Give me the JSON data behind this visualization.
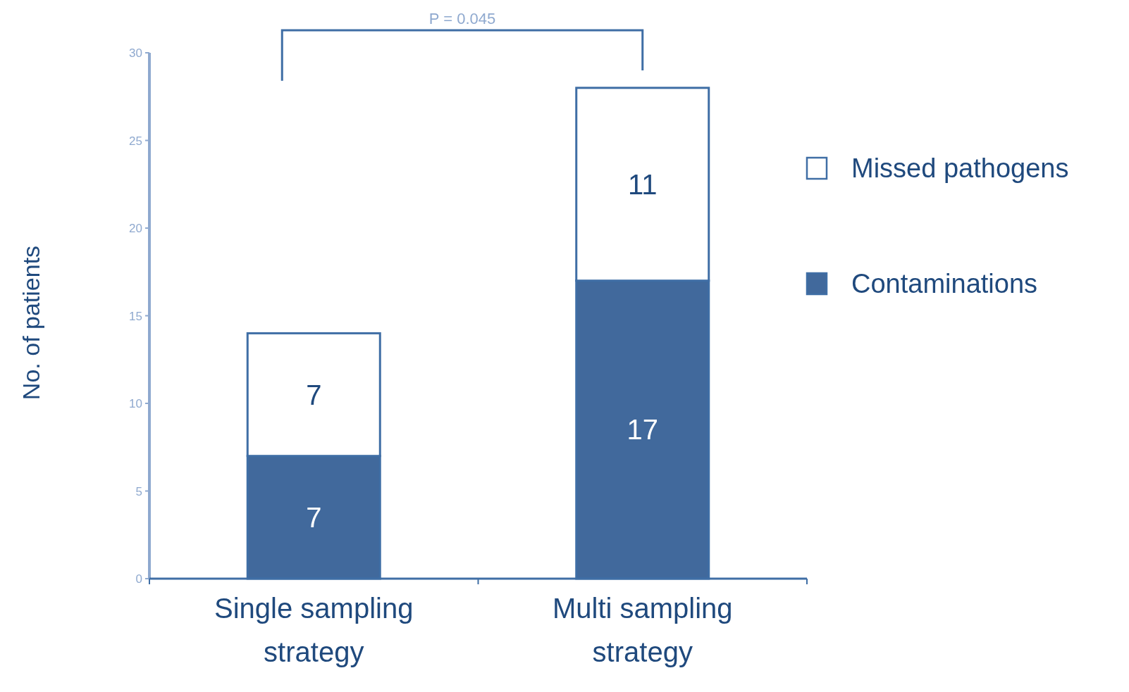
{
  "chart_data": {
    "type": "bar",
    "stacked": true,
    "ylabel": "No. of patients",
    "categories": [
      "Single sampling strategy",
      "Multi sampling strategy"
    ],
    "series": [
      {
        "name": "Contaminations",
        "color": "#41699c",
        "values": [
          7,
          17
        ]
      },
      {
        "name": "Missed pathogens",
        "color": "#ffffff",
        "values": [
          7,
          11
        ]
      }
    ],
    "ylim": [
      0,
      30
    ],
    "yticks": [
      0,
      5,
      10,
      15,
      20,
      25,
      30
    ],
    "data_labels": true,
    "legend": "right",
    "grid": false,
    "annotations": [
      "P = 0.045"
    ]
  }
}
